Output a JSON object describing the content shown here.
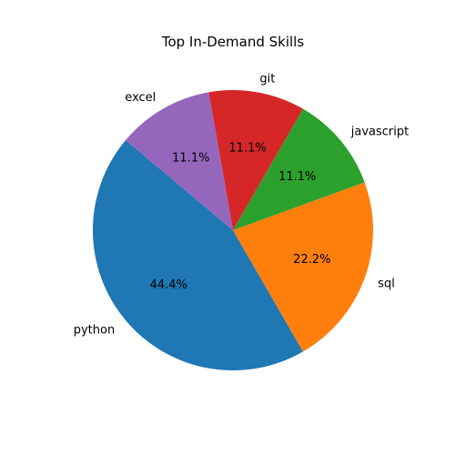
{
  "chart_data": {
    "type": "pie",
    "title": "Top In-Demand Skills",
    "slices": [
      {
        "label": "python",
        "value": 44.4,
        "pct_label": "44.4%",
        "color": "#1f77b4"
      },
      {
        "label": "sql",
        "value": 22.2,
        "pct_label": "22.2%",
        "color": "#ff7f0e"
      },
      {
        "label": "javascript",
        "value": 11.1,
        "pct_label": "11.1%",
        "color": "#2ca02c"
      },
      {
        "label": "git",
        "value": 11.1,
        "pct_label": "11.1%",
        "color": "#d62728"
      },
      {
        "label": "excel",
        "value": 11.1,
        "pct_label": "11.1%",
        "color": "#9467bd"
      }
    ],
    "start_angle_deg": 140,
    "direction": "counterclockwise",
    "legend": "none"
  }
}
